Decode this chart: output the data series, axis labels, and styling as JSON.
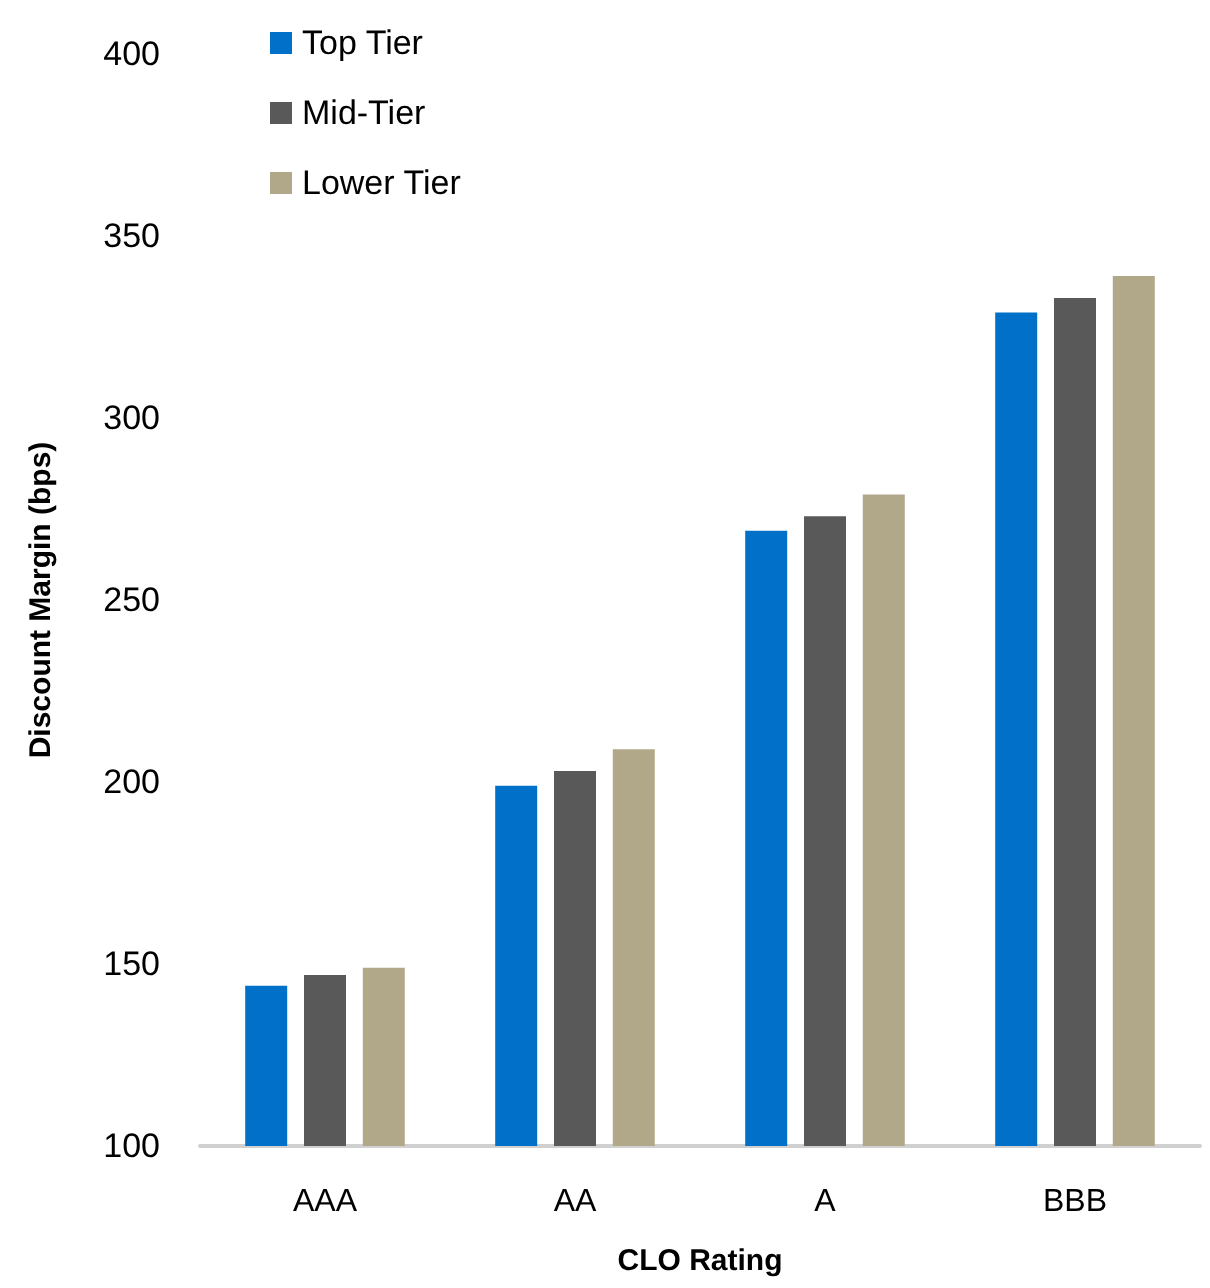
{
  "chart_data": {
    "type": "bar",
    "xlabel": "CLO Rating",
    "ylabel": "Discount Margin (bps)",
    "categories": [
      "AAA",
      "AA",
      "A",
      "BBB"
    ],
    "series": [
      {
        "name": "Top Tier",
        "color": "#0070c8",
        "values": [
          144,
          199,
          269,
          329
        ]
      },
      {
        "name": "Mid-Tier",
        "color": "#595959",
        "values": [
          147,
          203,
          273,
          333
        ]
      },
      {
        "name": "Lower Tier",
        "color": "#b1a889",
        "values": [
          149,
          209,
          279,
          339
        ]
      }
    ],
    "ylim": [
      100,
      400
    ],
    "yticks": [
      100,
      150,
      200,
      250,
      300,
      350,
      400
    ],
    "grid": false,
    "legend": "top left"
  }
}
